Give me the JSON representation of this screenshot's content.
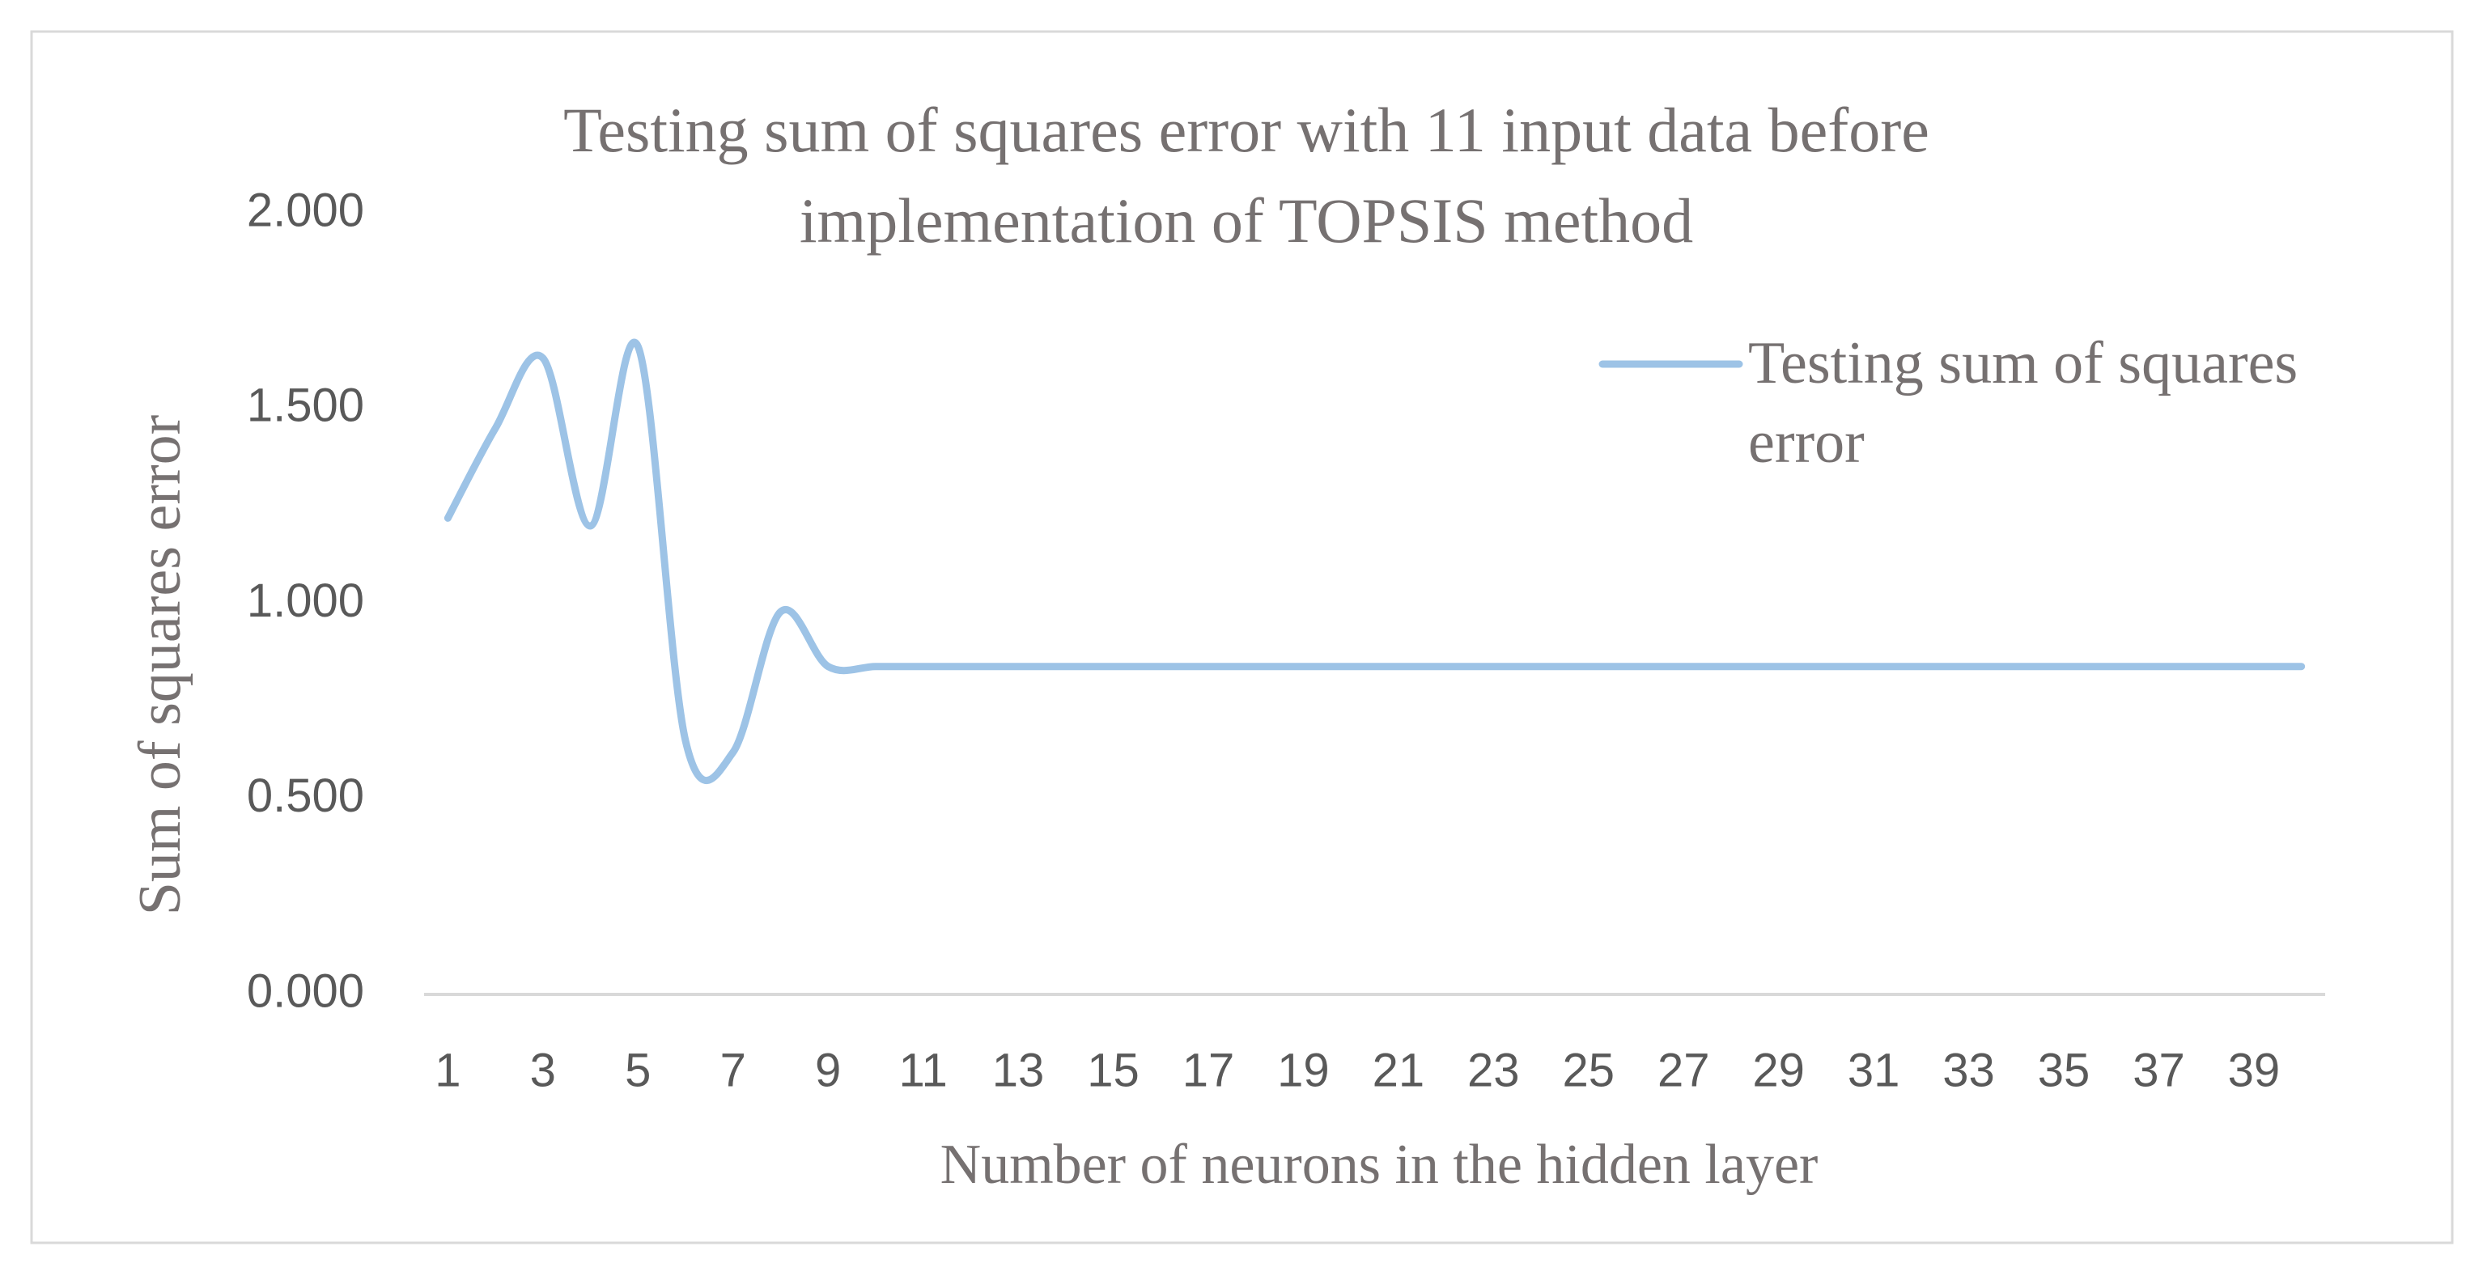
{
  "chart_data": {
    "type": "line",
    "title": "Testing sum of squares error with 11 input data before implementation of TOPSIS method",
    "x_label": "Number of neurons in the hidden layer",
    "y_label": "Sum of squares  error",
    "categories": [
      "1",
      null,
      "3",
      null,
      "5",
      null,
      "7",
      null,
      "9",
      null,
      "11",
      null,
      "13",
      null,
      "15",
      null,
      "17",
      null,
      "19",
      null,
      "21",
      null,
      "23",
      null,
      "25",
      null,
      "27",
      null,
      "29",
      null,
      "31",
      null,
      "33",
      null,
      "35",
      null,
      "37",
      null,
      "39",
      null
    ],
    "series": [
      {
        "name": "Testing sum of squares error",
        "color": "#9dc3e6",
        "values": [
          1.22,
          1.45,
          1.63,
          1.2,
          1.66,
          0.65,
          0.62,
          0.98,
          0.84,
          0.84,
          0.84,
          0.84,
          0.84,
          0.84,
          0.84,
          0.84,
          0.84,
          0.84,
          0.84,
          0.84,
          0.84,
          0.84,
          0.84,
          0.84,
          0.84,
          0.84,
          0.84,
          0.84,
          0.84,
          0.84,
          0.84,
          0.84,
          0.84,
          0.84,
          0.84,
          0.84,
          0.84,
          0.84,
          0.84,
          0.84
        ]
      }
    ],
    "ylim": [
      0,
      2
    ],
    "yticks": [
      {
        "value": 0,
        "label": "0.000"
      },
      {
        "value": 0.5,
        "label": "0.500"
      },
      {
        "value": 1,
        "label": "1.000"
      },
      {
        "value": 1.5,
        "label": "1.500"
      },
      {
        "value": 2,
        "label": "2.000"
      }
    ],
    "grid": false,
    "smooth": true,
    "legend": "upper-right"
  }
}
